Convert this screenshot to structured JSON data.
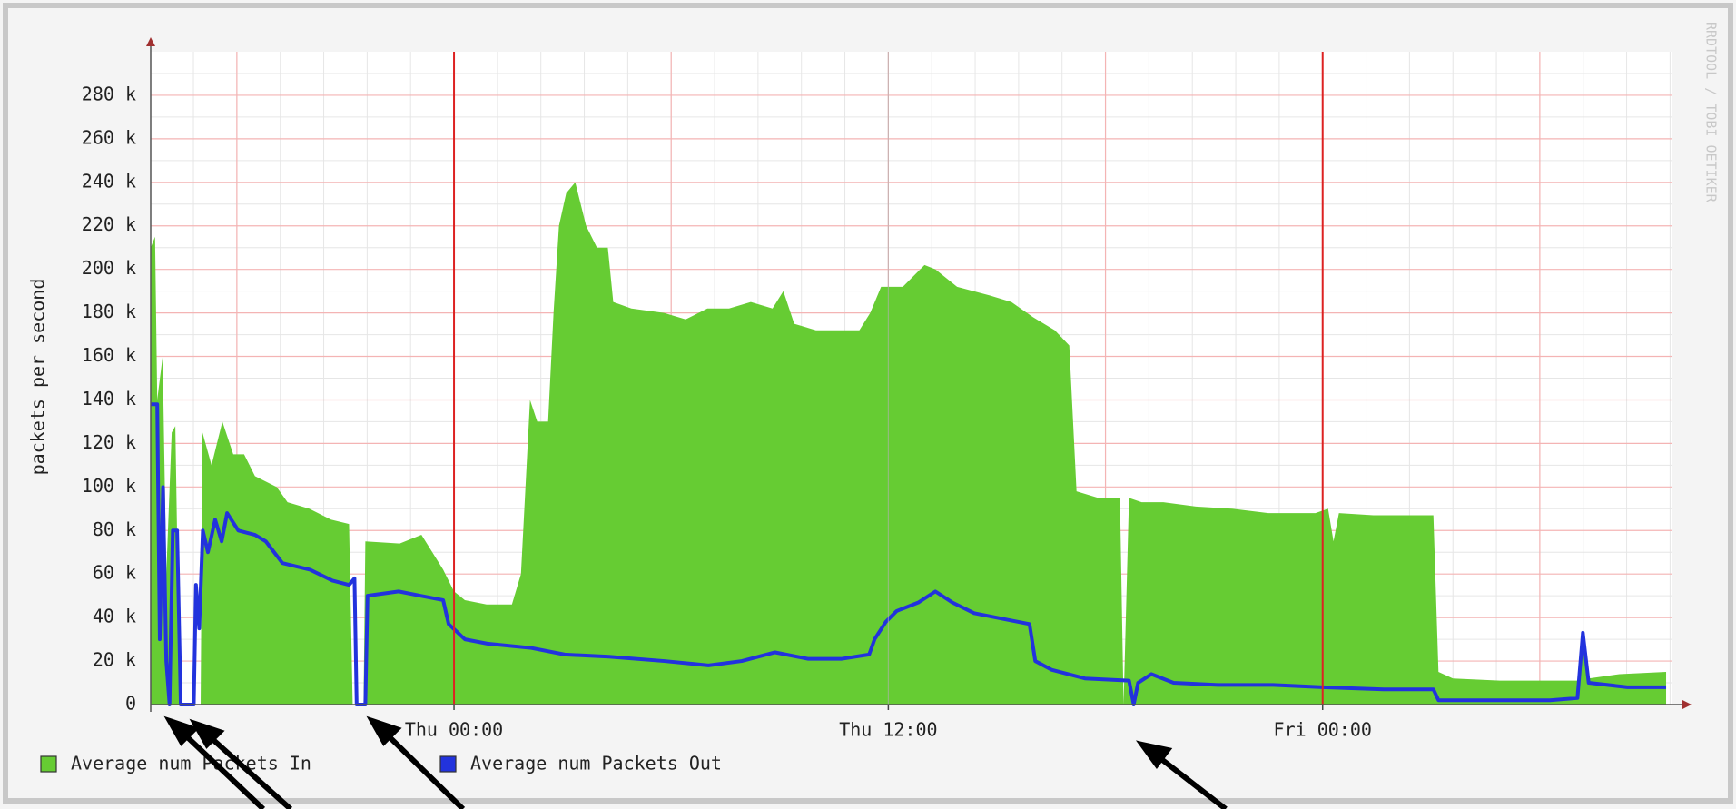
{
  "chart_data": {
    "type": "area_line",
    "y_label": "packets per second",
    "watermark": "RRDTOOL / TOBI OETIKER",
    "xlim": [
      -8.38,
      33.64
    ],
    "xticks": [
      {
        "value": 0,
        "label": "Thu 00:00"
      },
      {
        "value": 12,
        "label": "Thu 12:00"
      },
      {
        "value": 24,
        "label": "Fri 00:00"
      }
    ],
    "vrules": [
      0,
      24
    ],
    "vrule_color": "#dd2222",
    "ylim": [
      0,
      300000
    ],
    "yticks": [
      0,
      {
        "value": 20000,
        "label": "20 k"
      },
      {
        "value": 40000,
        "label": "40 k"
      },
      {
        "value": 60000,
        "label": "60 k"
      },
      {
        "value": 80000,
        "label": "80 k"
      },
      {
        "value": 100000,
        "label": "100 k"
      },
      {
        "value": 120000,
        "label": "120 k"
      },
      {
        "value": 140000,
        "label": "140 k"
      },
      {
        "value": 160000,
        "label": "160 k"
      },
      {
        "value": 180000,
        "label": "180 k"
      },
      {
        "value": 200000,
        "label": "200 k"
      },
      {
        "value": 220000,
        "label": "220 k"
      },
      {
        "value": 240000,
        "label": "240 k"
      },
      {
        "value": 260000,
        "label": "260 k"
      },
      {
        "value": 280000,
        "label": "280 k"
      }
    ],
    "grid": true,
    "series": [
      {
        "name": "Average num Packets In",
        "color": "#66cc33",
        "kind": "area",
        "x": [
          -8.38,
          -8.26,
          -8.2,
          -8.05,
          -7.95,
          -7.8,
          -7.7,
          -7.6,
          -7.5,
          -7.0,
          -6.95,
          -6.7,
          -6.4,
          -6.1,
          -5.8,
          -5.5,
          -4.9,
          -4.6,
          -4.0,
          -3.4,
          -2.9,
          -2.8,
          -2.5,
          -2.45,
          -1.5,
          -0.9,
          -0.3,
          0,
          0.3,
          0.9,
          1.6,
          1.85,
          2.1,
          2.3,
          2.6,
          2.75,
          2.9,
          3.1,
          3.35,
          3.65,
          3.95,
          4.25,
          4.4,
          4.9,
          5.8,
          6.4,
          7.0,
          7.6,
          8.2,
          8.8,
          9.1,
          9.4,
          10.0,
          10.6,
          11.2,
          11.5,
          11.8,
          12.4,
          13.0,
          13.3,
          13.9,
          14.8,
          15.4,
          16.0,
          16.6,
          17.0,
          17.2,
          17.8,
          18.4,
          18.5,
          18.65,
          19.0,
          19.6,
          20.5,
          21.5,
          22.5,
          23.8,
          24.15,
          24.3,
          24.45,
          25.4,
          27.06,
          27.2,
          27.6,
          28.9,
          31.04,
          31.19,
          31.35,
          32.2,
          33.49
        ],
        "values": [
          210000,
          215000,
          140000,
          160000,
          60000,
          125000,
          128000,
          25000,
          0,
          0,
          125000,
          110000,
          130000,
          115000,
          115000,
          105000,
          100000,
          93000,
          90000,
          85000,
          83000,
          0,
          0,
          75000,
          74000,
          78000,
          62000,
          52000,
          48000,
          46000,
          46000,
          60000,
          140000,
          130000,
          130000,
          180000,
          220000,
          235000,
          240000,
          220000,
          210000,
          210000,
          185000,
          182000,
          180000,
          177000,
          182000,
          182000,
          185000,
          182000,
          190000,
          175000,
          172000,
          172000,
          172000,
          180000,
          192000,
          192000,
          202000,
          200000,
          192000,
          188000,
          185000,
          178000,
          172000,
          165000,
          98000,
          95000,
          95000,
          0,
          95000,
          93000,
          93000,
          91000,
          90000,
          88000,
          88000,
          90000,
          75000,
          88000,
          87000,
          87000,
          15000,
          12000,
          11000,
          11000,
          35000,
          12000,
          14000,
          15000
        ]
      },
      {
        "name": "Average num Packets Out",
        "color": "#2233dd",
        "kind": "line",
        "x": [
          -8.38,
          -8.2,
          -8.13,
          -8.04,
          -7.95,
          -7.86,
          -7.77,
          -7.65,
          -7.55,
          -7.19,
          -7.13,
          -7.04,
          -6.94,
          -6.8,
          -6.6,
          -6.42,
          -6.27,
          -5.96,
          -5.5,
          -5.2,
          -4.74,
          -3.98,
          -3.36,
          -2.9,
          -2.75,
          -2.69,
          -2.45,
          -2.39,
          -1.53,
          -0.92,
          -0.3,
          -0.15,
          0.3,
          0.92,
          2.14,
          3.06,
          4.28,
          5.81,
          7.03,
          7.95,
          8.87,
          9.79,
          10.7,
          11.47,
          11.62,
          11.93,
          12.23,
          12.54,
          12.84,
          13.3,
          13.76,
          14.37,
          15.29,
          15.9,
          16.06,
          16.51,
          17.43,
          18.65,
          18.78,
          18.9,
          19.27,
          19.88,
          21.1,
          22.63,
          24.0,
          25.69,
          27.06,
          27.2,
          30.28,
          31.04,
          31.19,
          31.35,
          32.42,
          33.49
        ],
        "values": [
          138000,
          138000,
          30000,
          100000,
          20000,
          0,
          80000,
          80000,
          0,
          0,
          55000,
          35000,
          80000,
          70000,
          85000,
          75000,
          88000,
          80000,
          78000,
          75000,
          65000,
          62000,
          57000,
          55000,
          58000,
          0,
          0,
          50000,
          52000,
          50000,
          48000,
          37000,
          30000,
          28000,
          26000,
          23000,
          22000,
          20000,
          18000,
          20000,
          24000,
          21000,
          21000,
          23000,
          30000,
          38000,
          43000,
          45000,
          47000,
          52000,
          47000,
          42000,
          39000,
          37000,
          20000,
          16000,
          12000,
          11000,
          0,
          10000,
          14000,
          10000,
          9000,
          9000,
          8000,
          7000,
          7000,
          2000,
          2000,
          3000,
          33000,
          10000,
          8000,
          8000
        ]
      }
    ]
  }
}
